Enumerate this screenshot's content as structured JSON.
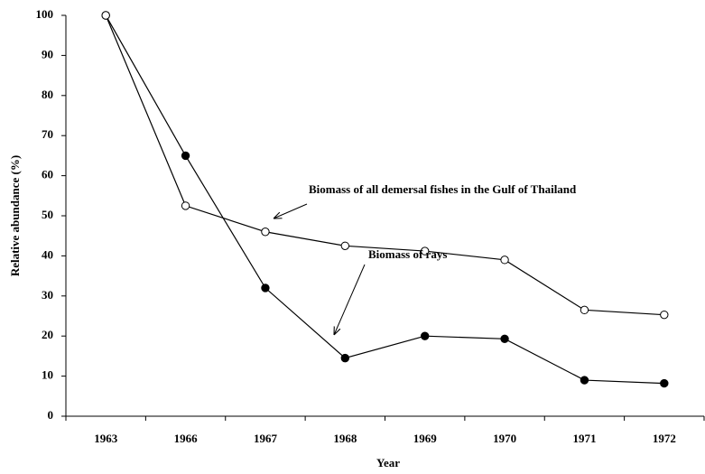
{
  "chart_data": {
    "type": "line",
    "x_label": "Year",
    "y_label": "Relative abundance (%)",
    "categories": [
      "1963",
      "1966",
      "1967",
      "1968",
      "1969",
      "1970",
      "1971",
      "1972"
    ],
    "series": [
      {
        "name": "Biomass of rays",
        "color": "#000000",
        "marker_fill": "#000000",
        "values": [
          100,
          65,
          32,
          14.5,
          20,
          19.3,
          9,
          8.2
        ]
      },
      {
        "name": "Biomass of all demersal fishes in the Gulf of Thailand",
        "color": "#000000",
        "marker_fill": "#ffffff",
        "values": [
          100,
          52.5,
          46,
          42.5,
          41.2,
          39,
          26.5,
          25.3
        ]
      }
    ],
    "ylim": [
      0,
      100
    ],
    "yticks": [
      0,
      10,
      20,
      30,
      40,
      50,
      60,
      70,
      80,
      90,
      100
    ],
    "grid": false
  }
}
